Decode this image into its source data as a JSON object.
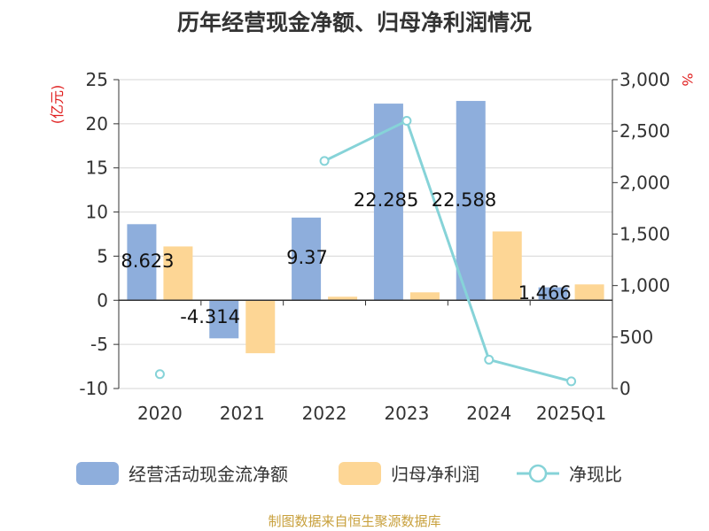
{
  "chart_data": {
    "type": "bar",
    "title": "历年经营现金净额、归母净利润情况",
    "categories": [
      "2020",
      "2021",
      "2022",
      "2023",
      "2024",
      "2025Q1"
    ],
    "left_axis": {
      "label": "(亿元)",
      "ylim": [
        -10,
        25
      ],
      "ticks": [
        -10,
        -5,
        0,
        5,
        10,
        15,
        20,
        25
      ]
    },
    "right_axis": {
      "label": "%",
      "ylim": [
        0,
        3000
      ],
      "ticks": [
        0,
        500,
        1000,
        1500,
        2000,
        2500,
        3000
      ],
      "tick_labels": [
        "0",
        "500",
        "1,000",
        "1,500",
        "2,000",
        "2,500",
        "3,000"
      ]
    },
    "series": [
      {
        "name": "经营活动现金流净额",
        "kind": "bar",
        "axis": "left",
        "color": "#8eaedc",
        "values": [
          8.623,
          -4.314,
          9.37,
          22.285,
          22.588,
          1.466
        ],
        "labels": [
          "8.623",
          "-4.314",
          "9.37",
          "22.285",
          "22.588",
          "1.466"
        ]
      },
      {
        "name": "归母净利润",
        "kind": "bar",
        "axis": "left",
        "color": "#fdd695",
        "values": [
          6.1,
          -6.0,
          0.4,
          0.9,
          7.8,
          1.8
        ]
      },
      {
        "name": "净现比",
        "kind": "line",
        "axis": "right",
        "color": "#86d3d8",
        "values": [
          140,
          null,
          2210,
          2600,
          280,
          70
        ]
      }
    ],
    "grid": true,
    "legend_position": "bottom"
  },
  "footer": "制图数据来自恒生聚源数据库"
}
